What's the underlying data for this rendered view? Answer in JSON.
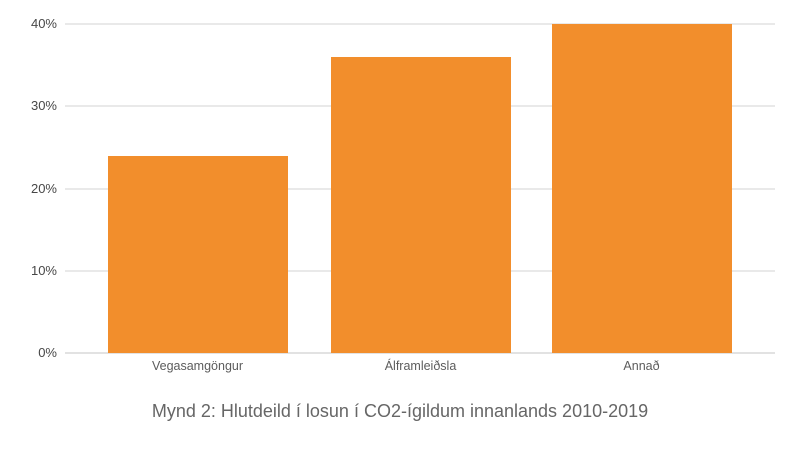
{
  "chart_data": {
    "type": "bar",
    "categories": [
      "Vegasamgöngur",
      "Álframleiðsla",
      "Annað"
    ],
    "values": [
      24,
      36,
      40
    ],
    "title": "Mynd 2: Hlutdeild í losun í CO2-ígildum innanlands 2010-2019",
    "xlabel": "",
    "ylabel": "",
    "yticks": [
      0,
      10,
      20,
      30,
      40
    ],
    "ytick_labels": [
      "0%",
      "10%",
      "20%",
      "30%",
      "40%"
    ],
    "ylim": [
      0,
      40
    ],
    "grid": true,
    "legend_position": "none",
    "bar_color": "#F28E2C",
    "background_color": "#FFFFFF",
    "grid_color": "#E9E9E9",
    "zero_line_color": "#E2E2E2",
    "ytick_color": "#474747",
    "xtick_color": "#5C5C5C",
    "title_color": "#666666"
  }
}
